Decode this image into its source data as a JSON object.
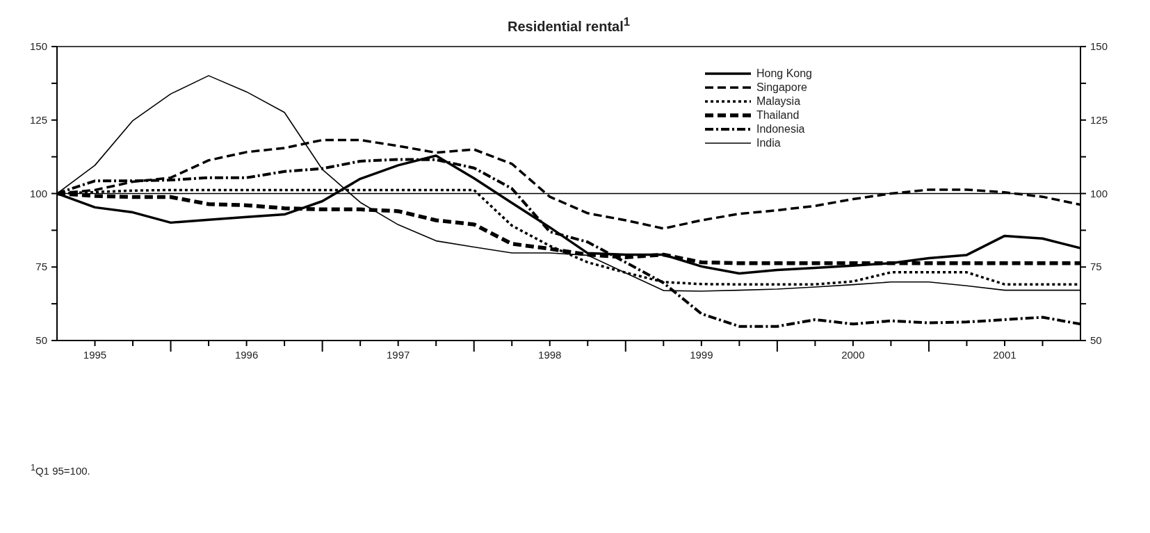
{
  "chart_data": {
    "type": "line",
    "title": "Residential rental$^{1}$",
    "annotations": [
      "$^{1}$Q1 95=100."
    ],
    "x": [
      1995.25,
      1995.5,
      1995.75,
      1996,
      1996.25,
      1996.5,
      1996.75,
      1997,
      1997.25,
      1997.5,
      1997.75,
      1998,
      1998.25,
      1998.5,
      1998.75,
      1999,
      1999.25,
      1999.5,
      1999.75,
      2000,
      2000.25,
      2000.5,
      2000.75,
      2001,
      2001.25,
      2001.5,
      2001.75,
      2002
    ],
    "series": [
      {
        "name": "Hong Kong",
        "color": "#000000",
        "line_style": "solid",
        "values": [
          100,
          95.3,
          93.6,
          90.1,
          91.1,
          92,
          92.9,
          97.4,
          105,
          109.6,
          112.9,
          105.2,
          96.8,
          88.5,
          79.7,
          79.2,
          79.2,
          75.2,
          72.8,
          74,
          74.7,
          75.5,
          76.3,
          78,
          79.1,
          85.6,
          84.7,
          81.4
        ]
      },
      {
        "name": "Singapore",
        "color": "#000000",
        "line_style": "dashed",
        "values": [
          100,
          101.2,
          104,
          105.4,
          111.3,
          114.1,
          115.5,
          118.2,
          118.2,
          116.2,
          113.9,
          115,
          110.1,
          98.9,
          93.3,
          90.9,
          88.1,
          90.9,
          93.1,
          94.3,
          95.8,
          98.1,
          100,
          101.3,
          101.3,
          100.4,
          98.9,
          96.2
        ]
      },
      {
        "name": "Malaysia",
        "color": "#000000",
        "line_style": "dotted",
        "values": [
          100,
          100.5,
          101,
          101.2,
          101.2,
          101.2,
          101.2,
          101.2,
          101.2,
          101.2,
          101.2,
          101.2,
          89.1,
          82.2,
          76.6,
          73.1,
          69.9,
          69.2,
          69.1,
          69.1,
          69.1,
          70.1,
          73.2,
          73.2,
          73.2,
          69.1,
          69.1,
          69.1
        ]
      },
      {
        "name": "Thailand",
        "color": "#000000",
        "line_style": "dashed",
        "values": [
          100,
          99.2,
          98.8,
          98.8,
          96.4,
          96,
          95,
          94.6,
          94.6,
          94,
          90.9,
          89.5,
          82.9,
          81.2,
          79.2,
          78.3,
          79.2,
          76.6,
          76.3,
          76.3,
          76.3,
          76.3,
          76.3,
          76.3,
          76.3,
          76.3,
          76.3,
          76.3
        ]
      },
      {
        "name": "Indonesia",
        "color": "#000000",
        "line_style": "dashdot",
        "values": [
          100,
          104.3,
          104.3,
          104.6,
          105.4,
          105.4,
          107.5,
          108.5,
          111,
          111.6,
          111.5,
          108.7,
          101.7,
          87,
          83.5,
          76.6,
          69.6,
          59.1,
          54.8,
          54.8,
          57.1,
          55.6,
          56.7,
          56,
          56.3,
          57.1,
          57.9,
          55.6
        ]
      },
      {
        "name": "India",
        "color": "#000000",
        "line_style": "solid",
        "values": [
          100,
          109.6,
          124.8,
          133.9,
          140.1,
          134.6,
          127.6,
          108.2,
          97,
          89.4,
          83.9,
          81.8,
          79.8,
          79.8,
          79,
          73,
          67,
          66.8,
          67.1,
          67.5,
          68.2,
          69,
          69.9,
          69.9,
          68.6,
          67.1,
          67.1,
          67.1
        ]
      }
    ],
    "xlim": [
      1995.25,
      2002
    ],
    "xticks": [
      {
        "value": 1995.5,
        "label": "1995"
      },
      {
        "value": 1995.75,
        "label": null
      },
      {
        "value": 1996,
        "label": null
      },
      {
        "value": 1996.25,
        "label": null
      },
      {
        "value": 1996.5,
        "label": "1996"
      },
      {
        "value": 1996.75,
        "label": null
      },
      {
        "value": 1997,
        "label": null
      },
      {
        "value": 1997.25,
        "label": null
      },
      {
        "value": 1997.5,
        "label": "1997"
      },
      {
        "value": 1997.75,
        "label": null
      },
      {
        "value": 1998,
        "label": null
      },
      {
        "value": 1998.25,
        "label": null
      },
      {
        "value": 1998.5,
        "label": "1998"
      },
      {
        "value": 1998.75,
        "label": null
      },
      {
        "value": 1999,
        "label": null
      },
      {
        "value": 1999.25,
        "label": null
      },
      {
        "value": 1999.5,
        "label": "1999"
      },
      {
        "value": 1999.75,
        "label": null
      },
      {
        "value": 2000,
        "label": null
      },
      {
        "value": 2000.25,
        "label": null
      },
      {
        "value": 2000.5,
        "label": "2000"
      },
      {
        "value": 2000.75,
        "label": null
      },
      {
        "value": 2001,
        "label": null
      },
      {
        "value": 2001.25,
        "label": null
      },
      {
        "value": 2001.5,
        "label": "2001"
      },
      {
        "value": 2001.75,
        "label": null
      }
    ],
    "ylim": [
      50,
      150
    ],
    "yticks": [
      50,
      {
        "value": 62.5,
        "label": null
      },
      75,
      {
        "value": 87.5,
        "label": null
      },
      100,
      {
        "value": 112.5,
        "label": null
      },
      125,
      {
        "value": 137.5,
        "label": null
      },
      150
    ],
    "y2lim": [
      50,
      150
    ],
    "y2ticks": [
      50,
      {
        "value": 62.5,
        "label": null
      },
      75,
      {
        "value": 87.5,
        "label": null
      },
      100,
      {
        "value": 112.5,
        "label": null
      },
      125,
      {
        "value": 137.5,
        "label": null
      },
      150
    ],
    "ref_lines": [
      {
        "axis": "y",
        "value": 100,
        "color": "#000000",
        "line_style": "solid"
      }
    ],
    "grid": false,
    "legend": "top right",
    "marker": "none"
  }
}
